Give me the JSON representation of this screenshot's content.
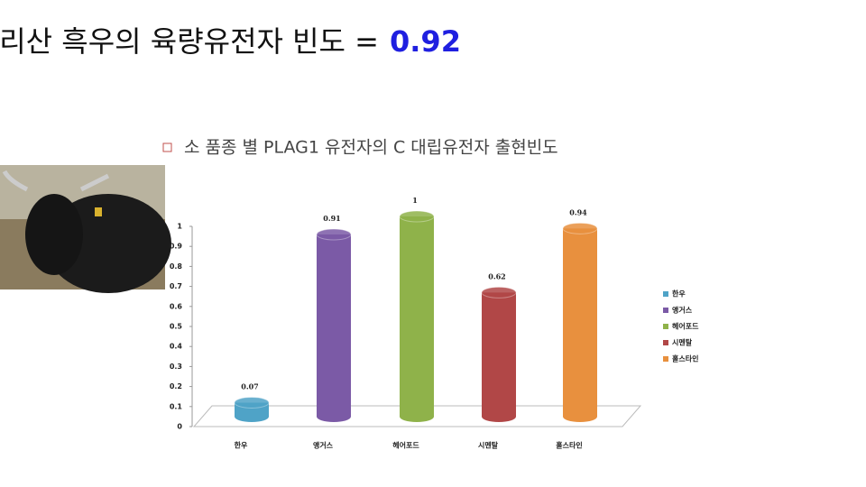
{
  "slide": {
    "title": "지리산 흑우의 육량유전자 빈도 =",
    "highlight": "0.92",
    "subtitle": "소 품종 별 PLAG1 유전자의 C 대립유전자 출현빈도"
  },
  "chart_data": {
    "type": "bar",
    "categories": [
      "한우",
      "앵거스",
      "헤어포드",
      "시멘탈",
      "홀스타인"
    ],
    "values": [
      0.07,
      0.91,
      1,
      0.62,
      0.94
    ],
    "colors": [
      "#4fa3c7",
      "#7b5aa6",
      "#8fb24a",
      "#b14747",
      "#e8903e"
    ],
    "ylim": [
      0,
      1
    ],
    "yticks": [
      0,
      0.1,
      0.2,
      0.3,
      0.4,
      0.5,
      0.6,
      0.7,
      0.8,
      0.9,
      1
    ],
    "legend": "right"
  }
}
